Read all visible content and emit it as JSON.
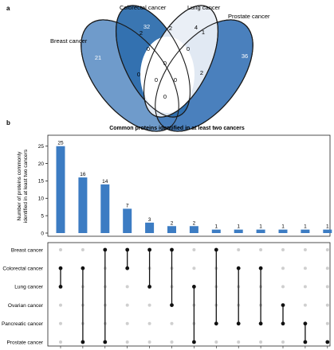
{
  "panel_a": {
    "label": "a",
    "sets": [
      "Breast cancer",
      "Colorectal cancer",
      "Lung cancer",
      "Prostate cancer"
    ],
    "colors": {
      "breast": "#6f9bcb",
      "colorectal": "#2f6fae",
      "lung": "#e9eef6",
      "prostate": "#4a80bd",
      "overlap": "#ffffff",
      "outline": "#1a1a1a"
    },
    "counts": {
      "breast_only": "21",
      "colorectal_only": "32",
      "lung_only": "4",
      "prostate_only": "36",
      "breast_colorectal": "2",
      "colorectal_lung": "2",
      "lung_prostate": "1",
      "breast_lung": "0",
      "breast_prostate": "0",
      "colorectal_prostate": "0",
      "breast_colorectal_lung": "0",
      "colorectal_lung_prostate": "0",
      "breast_colorectal_prostate": "0",
      "breast_lung_prostate": "2",
      "all_four": "0",
      "bottom_center": "0"
    }
  },
  "panel_b": {
    "label": "b",
    "title": "Common proteins identified in at least two cancers",
    "ylabel_line1": "Number of proteins commonly",
    "ylabel_line2": "identified in at least two cancers",
    "bar_color": "#3c7cc3",
    "dot_on": "#111111",
    "dot_off": "#cfcfcf"
  },
  "chart_data": {
    "type": "bar",
    "title": "Common proteins identified in at least two cancers",
    "ylabel": "Number of proteins commonly identified in at least two cancers",
    "ylim": [
      0,
      27
    ],
    "yticks": [
      0,
      5,
      10,
      15,
      20,
      25
    ],
    "values": [
      25,
      16,
      14,
      7,
      3,
      2,
      2,
      1,
      1,
      1,
      1,
      1,
      1
    ],
    "value_labels": [
      "25",
      "16",
      "14",
      "7",
      "3",
      "2",
      "2",
      "1",
      "1",
      "1",
      "1",
      "1",
      "1"
    ],
    "cancers": [
      "Breast cancer",
      "Colorectal cancer",
      "Lung cancer",
      "Ovarian cancer",
      "Pancreatic cancer",
      "Prostate cancer"
    ],
    "combinations": [
      [
        "Colorectal cancer",
        "Lung cancer"
      ],
      [
        "Colorectal cancer",
        "Prostate cancer"
      ],
      [
        "Breast cancer",
        "Prostate cancer"
      ],
      [
        "Breast cancer",
        "Colorectal cancer"
      ],
      [
        "Breast cancer",
        "Lung cancer"
      ],
      [
        "Breast cancer",
        "Ovarian cancer"
      ],
      [
        "Lung cancer",
        "Prostate cancer"
      ],
      [
        "Breast cancer",
        "Pancreatic cancer"
      ],
      [
        "Colorectal cancer",
        "Pancreatic cancer"
      ],
      [
        "Colorectal cancer",
        "Pancreatic cancer"
      ],
      [
        "Ovarian cancer",
        "Pancreatic cancer"
      ],
      [
        "Pancreatic cancer",
        "Prostate cancer"
      ],
      [
        "Prostate cancer"
      ]
    ]
  }
}
